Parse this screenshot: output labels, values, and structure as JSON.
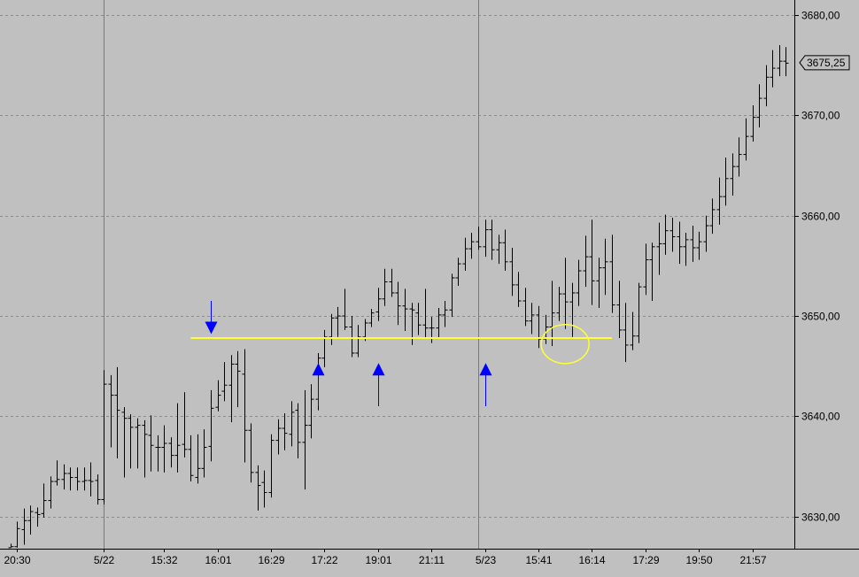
{
  "colors": {
    "background": "#c0c0c0",
    "bars": "#000000",
    "grid": "#8c8c8c",
    "separator": "#7a7a7a",
    "support_line": "#ffff33",
    "arrows": "#0000ff",
    "price_marker_bg": "#c0c0c0"
  },
  "chart_data": {
    "type": "ohlc",
    "grid": true,
    "title": "",
    "xlabel": "",
    "ylabel": "",
    "ylim": [
      3626.8,
      3681.5
    ],
    "y_ticks": [
      3630,
      3640,
      3650,
      3660,
      3670,
      3680
    ],
    "y_tick_labels": [
      "3630,00",
      "3640,00",
      "3650,00",
      "3660,00",
      "3670,00",
      "3680,00"
    ],
    "last_price_label": "3675,25",
    "last_price": 3675.25,
    "x_tick_labels": [
      {
        "label": "20:30",
        "bar": 1
      },
      {
        "label": "5/22",
        "bar": 14
      },
      {
        "label": "15:32",
        "bar": 23
      },
      {
        "label": "16:01",
        "bar": 31
      },
      {
        "label": "16:29",
        "bar": 39
      },
      {
        "label": "17:22",
        "bar": 47
      },
      {
        "label": "19:01",
        "bar": 55
      },
      {
        "label": "21:11",
        "bar": 63
      },
      {
        "label": "5/23",
        "bar": 71
      },
      {
        "label": "15:41",
        "bar": 79
      },
      {
        "label": "16:14",
        "bar": 87
      },
      {
        "label": "17:29",
        "bar": 95
      },
      {
        "label": "19:50",
        "bar": 103
      },
      {
        "label": "21:57",
        "bar": 111
      }
    ],
    "session_separators": [
      14,
      70
    ],
    "support_level": 3647.8,
    "support_span": [
      27,
      90
    ],
    "arrows": [
      {
        "direction": "down",
        "bar": 30,
        "price_top": 3651.5,
        "price_tip": 3648.2
      },
      {
        "direction": "up",
        "bar": 46,
        "price_tip": 3645.3,
        "price_bottom": 3641
      },
      {
        "direction": "up",
        "bar": 55,
        "price_tip": 3645.3,
        "price_bottom": 3641
      },
      {
        "direction": "up",
        "bar": 71,
        "price_tip": 3645.3,
        "price_bottom": 3641
      }
    ],
    "highlight": {
      "bar": 83,
      "price": 3647.2
    },
    "ohlc": [
      [
        3626.9,
        3627.3,
        3626.9,
        3627.0
      ],
      [
        3627.0,
        3629.5,
        3626.9,
        3628.8
      ],
      [
        3628.7,
        3630.8,
        3627.2,
        3629.6
      ],
      [
        3629.6,
        3631.1,
        3628.2,
        3630.5
      ],
      [
        3630.4,
        3630.9,
        3629.0,
        3630.2
      ],
      [
        3630.3,
        3633.3,
        3629.9,
        3631.6
      ],
      [
        3631.6,
        3634.0,
        3630.8,
        3633.5
      ],
      [
        3633.5,
        3635.6,
        3633.1,
        3633.7
      ],
      [
        3633.7,
        3635.2,
        3632.7,
        3634.3
      ],
      [
        3634.3,
        3634.9,
        3632.6,
        3633.9
      ],
      [
        3633.9,
        3634.9,
        3632.6,
        3633.5
      ],
      [
        3633.5,
        3634.9,
        3632.6,
        3633.6
      ],
      [
        3633.6,
        3635.4,
        3632.0,
        3633.5
      ],
      [
        3633.6,
        3634.2,
        3631.2,
        3631.7
      ],
      [
        3631.7,
        3644.6,
        3631.2,
        3643.2
      ],
      [
        3643.2,
        3644.1,
        3636.9,
        3642.1
      ],
      [
        3642.1,
        3644.9,
        3635.8,
        3640.6
      ],
      [
        3640.4,
        3640.9,
        3633.9,
        3639.8
      ],
      [
        3639.8,
        3640.2,
        3634.8,
        3638.9
      ],
      [
        3638.9,
        3639.8,
        3634.8,
        3639.1
      ],
      [
        3639.1,
        3639.6,
        3633.9,
        3638.2
      ],
      [
        3638.1,
        3640.1,
        3634.5,
        3637.1
      ],
      [
        3636.9,
        3638.1,
        3634.5,
        3636.9
      ],
      [
        3636.9,
        3639.1,
        3634.4,
        3637.3
      ],
      [
        3637.3,
        3637.9,
        3634.9,
        3636.1
      ],
      [
        3636.1,
        3641.3,
        3634.4,
        3637.1
      ],
      [
        3637.2,
        3642.4,
        3635.9,
        3636.7
      ],
      [
        3636.7,
        3638.1,
        3633.5,
        3634.1
      ],
      [
        3633.9,
        3638.2,
        3633.3,
        3634.8
      ],
      [
        3634.8,
        3638.7,
        3633.9,
        3636.9
      ],
      [
        3637.0,
        3642.6,
        3635.5,
        3640.8
      ],
      [
        3640.9,
        3643.6,
        3640.5,
        3642.1
      ],
      [
        3642.5,
        3645.4,
        3641.5,
        3643.1
      ],
      [
        3643.1,
        3646.1,
        3639.4,
        3645.2
      ],
      [
        3645.2,
        3646.5,
        3640.9,
        3644.5
      ],
      [
        3644.2,
        3646.7,
        3635.4,
        3638.6
      ],
      [
        3638.6,
        3639.3,
        3633.4,
        3634.4
      ],
      [
        3634.4,
        3635.1,
        3630.6,
        3633.1
      ],
      [
        3633.4,
        3634.6,
        3630.9,
        3632.4
      ],
      [
        3632.4,
        3638.2,
        3631.9,
        3637.6
      ],
      [
        3637.6,
        3639.7,
        3636.2,
        3638.8
      ],
      [
        3638.8,
        3640.3,
        3636.6,
        3638.3
      ],
      [
        3638.2,
        3641.5,
        3637.0,
        3640.4
      ],
      [
        3640.6,
        3641.3,
        3635.8,
        3637.4
      ],
      [
        3637.4,
        3642.6,
        3632.7,
        3639.1
      ],
      [
        3639.1,
        3643.2,
        3637.8,
        3641.7
      ],
      [
        3641.7,
        3646.3,
        3640.6,
        3645.8
      ],
      [
        3645.8,
        3648.6,
        3644.9,
        3647.9
      ],
      [
        3647.9,
        3650.2,
        3647.1,
        3649.8
      ],
      [
        3649.8,
        3650.9,
        3647.9,
        3650.0
      ],
      [
        3650.0,
        3652.7,
        3648.6,
        3648.9
      ],
      [
        3648.9,
        3650.0,
        3645.9,
        3646.3
      ],
      [
        3646.3,
        3649.1,
        3645.9,
        3647.9
      ],
      [
        3647.9,
        3649.7,
        3647.5,
        3649.3
      ],
      [
        3649.3,
        3650.7,
        3648.9,
        3650.3
      ],
      [
        3650.4,
        3652.8,
        3649.5,
        3651.7
      ],
      [
        3651.7,
        3654.7,
        3651.0,
        3653.4
      ],
      [
        3653.4,
        3654.7,
        3651.9,
        3652.3
      ],
      [
        3652.3,
        3653.4,
        3649.1,
        3651.0
      ],
      [
        3651.0,
        3652.7,
        3648.5,
        3650.7
      ],
      [
        3650.7,
        3651.3,
        3647.1,
        3650.6
      ],
      [
        3650.3,
        3651.3,
        3648.1,
        3649.1
      ],
      [
        3649.1,
        3652.7,
        3647.9,
        3648.8
      ],
      [
        3648.8,
        3649.9,
        3647.3,
        3648.8
      ],
      [
        3648.8,
        3650.8,
        3647.8,
        3650.1
      ],
      [
        3650.1,
        3651.5,
        3648.9,
        3650.6
      ],
      [
        3650.6,
        3654.2,
        3649.9,
        3653.8
      ],
      [
        3653.8,
        3655.8,
        3653.0,
        3655.2
      ],
      [
        3655.2,
        3657.8,
        3654.5,
        3656.7
      ],
      [
        3656.7,
        3658.3,
        3655.7,
        3657.4
      ],
      [
        3657.4,
        3658.9,
        3656.6,
        3656.9
      ],
      [
        3656.9,
        3659.6,
        3655.9,
        3658.6
      ],
      [
        3658.6,
        3659.6,
        3655.6,
        3656.6
      ],
      [
        3656.6,
        3658.1,
        3655.2,
        3657.3
      ],
      [
        3657.3,
        3658.6,
        3654.5,
        3655.4
      ],
      [
        3655.4,
        3656.8,
        3652.0,
        3653.1
      ],
      [
        3653.1,
        3654.4,
        3650.9,
        3651.5
      ],
      [
        3651.5,
        3652.8,
        3649.0,
        3649.5
      ],
      [
        3649.5,
        3651.3,
        3648.2,
        3650.1
      ],
      [
        3650.1,
        3651.0,
        3646.8,
        3647.7
      ],
      [
        3647.7,
        3650.1,
        3647.2,
        3648.9
      ],
      [
        3648.9,
        3653.5,
        3647.0,
        3650.3
      ],
      [
        3650.3,
        3652.9,
        3649.5,
        3652.2
      ],
      [
        3652.2,
        3655.8,
        3648.7,
        3651.4
      ],
      [
        3651.4,
        3653.3,
        3647.9,
        3652.3
      ],
      [
        3652.3,
        3655.6,
        3651.0,
        3654.5
      ],
      [
        3654.5,
        3658.0,
        3652.9,
        3655.9
      ],
      [
        3655.9,
        3659.6,
        3651.1,
        3653.5
      ],
      [
        3653.5,
        3655.8,
        3650.8,
        3654.8
      ],
      [
        3654.8,
        3657.7,
        3652.1,
        3655.4
      ],
      [
        3655.4,
        3658.1,
        3650.3,
        3651.1
      ],
      [
        3651.1,
        3653.5,
        3647.8,
        3648.6
      ],
      [
        3648.6,
        3651.3,
        3645.4,
        3647.1
      ],
      [
        3647.1,
        3650.4,
        3646.6,
        3648.0
      ],
      [
        3648.0,
        3653.3,
        3647.3,
        3652.9
      ],
      [
        3652.9,
        3657.2,
        3652.1,
        3655.6
      ],
      [
        3655.6,
        3657.3,
        3651.5,
        3656.9
      ],
      [
        3656.9,
        3659.3,
        3654.1,
        3657.2
      ],
      [
        3657.2,
        3660.1,
        3656.1,
        3658.5
      ],
      [
        3658.5,
        3659.8,
        3656.4,
        3657.9
      ],
      [
        3657.9,
        3659.4,
        3655.2,
        3656.9
      ],
      [
        3656.9,
        3658.3,
        3655.0,
        3657.6
      ],
      [
        3657.6,
        3659.0,
        3655.4,
        3656.8
      ],
      [
        3656.8,
        3658.4,
        3655.6,
        3657.4
      ],
      [
        3657.4,
        3660.0,
        3656.4,
        3659.0
      ],
      [
        3659.0,
        3661.7,
        3658.2,
        3660.6
      ],
      [
        3660.6,
        3663.8,
        3659.1,
        3661.9
      ],
      [
        3661.9,
        3665.8,
        3661.0,
        3663.7
      ],
      [
        3663.7,
        3666.2,
        3662.0,
        3664.9
      ],
      [
        3664.9,
        3667.8,
        3663.9,
        3666.1
      ],
      [
        3666.1,
        3669.7,
        3665.5,
        3667.9
      ],
      [
        3667.9,
        3671.0,
        3667.4,
        3669.8
      ],
      [
        3669.8,
        3673.1,
        3668.8,
        3671.7
      ],
      [
        3671.7,
        3675.0,
        3670.9,
        3673.8
      ],
      [
        3673.8,
        3676.5,
        3672.8,
        3674.7
      ],
      [
        3674.7,
        3677.0,
        3673.9,
        3675.4
      ],
      [
        3675.4,
        3676.8,
        3673.9,
        3675.2
      ]
    ]
  }
}
